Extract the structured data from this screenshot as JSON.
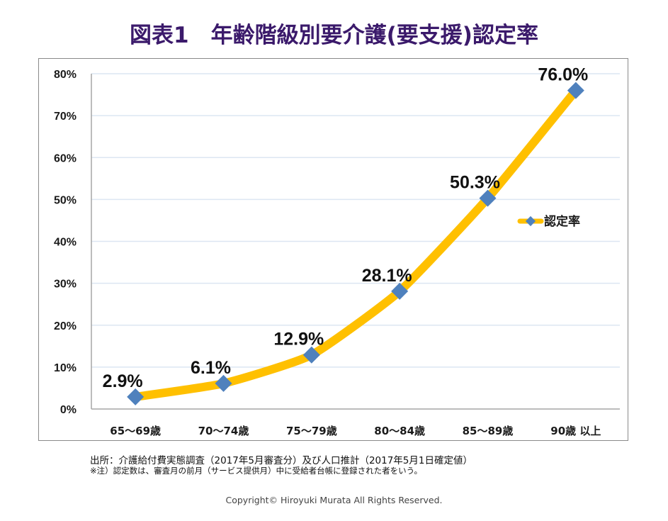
{
  "title": "図表1　年齢階級別要介護(要支援)認定率",
  "chart_data": {
    "type": "line",
    "title": "図表1　年齢階級別要介護(要支援)認定率",
    "xlabel": "",
    "ylabel": "",
    "categories": [
      "65～69歳",
      "70～74歳",
      "75～79歳",
      "80～84歳",
      "85～89歳",
      "90歳 以上"
    ],
    "series": [
      {
        "name": "認定率",
        "values": [
          2.9,
          6.1,
          12.9,
          28.1,
          50.3,
          76.0
        ],
        "labels": [
          "2.9%",
          "6.1%",
          "12.9%",
          "28.1%",
          "50.3%",
          "76.0%"
        ],
        "line_color": "#FFC000",
        "marker_color": "#4F81BD",
        "marker": "diamond",
        "smooth": true
      }
    ],
    "ylim": [
      0,
      80
    ],
    "yticks": [
      0,
      10,
      20,
      30,
      40,
      50,
      60,
      70,
      80
    ],
    "ytick_labels": [
      "0%",
      "10%",
      "20%",
      "30%",
      "40%",
      "50%",
      "60%",
      "70%",
      "80%"
    ],
    "grid": true,
    "legend": {
      "placement": "right",
      "entries": [
        "認定率"
      ]
    }
  },
  "footer": {
    "source": "出所：介護給付費実態調査（2017年5月審査分）及び人口推計（2017年5月1日確定値）",
    "note": "※注）認定数は、審査月の前月（サービス提供月）中に受給者台帳に登録された者をいう。",
    "copyright": "Copyright© Hiroyuki Murata All Rights Reserved."
  },
  "colors": {
    "title": "#3b1a6b",
    "line": "#FFC000",
    "marker": "#4F81BD",
    "grid": "#dce6f2"
  }
}
